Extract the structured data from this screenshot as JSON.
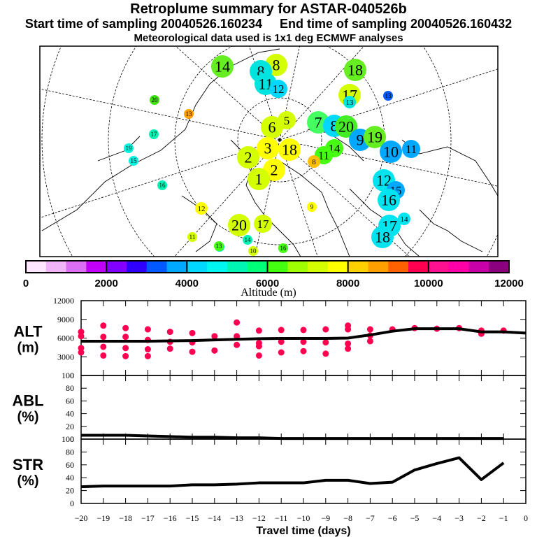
{
  "header": {
    "title": "Retroplume summary for ASTAR-040526b",
    "line2": "Start time of sampling 20040526.160234     End time of sampling 20040526.160432",
    "line3": "Meteorological data used is 1x1 deg ECMWF analyses"
  },
  "colorbar": {
    "label": "Altitude (m)",
    "ticks": [
      "0",
      "2000",
      "4000",
      "6000",
      "8000",
      "10000",
      "12000"
    ],
    "range": [
      0,
      12000
    ],
    "colors": [
      "#ffe6ff",
      "#f2b4f9",
      "#dc6ef4",
      "#c000f8",
      "#8200ff",
      "#3000ff",
      "#005aff",
      "#00a8ff",
      "#00d8ff",
      "#00f6f0",
      "#00f5b4",
      "#00ff78",
      "#44ff10",
      "#a0ff00",
      "#d4ff00",
      "#ffff00",
      "#ffd000",
      "#ffa000",
      "#ff6000",
      "#ff0050",
      "#ff1090",
      "#ff00a8",
      "#c800a8",
      "#8c0080"
    ]
  },
  "map": {
    "markers": [
      {
        "label": "14",
        "color": "#66ee22",
        "size": "l"
      },
      {
        "label": "8",
        "color": "#d4ff00",
        "size": "l"
      },
      {
        "label": "8",
        "color": "#00e4e0",
        "size": "l"
      },
      {
        "label": "11",
        "color": "#00e4e0",
        "size": "l"
      },
      {
        "label": "12",
        "color": "#00d8ff",
        "size": "m"
      },
      {
        "label": "18",
        "color": "#66ee22",
        "size": "l"
      },
      {
        "label": "17",
        "color": "#d4ff00",
        "size": "l"
      },
      {
        "label": "13",
        "color": "#00e4e0",
        "size": "s"
      },
      {
        "label": "20",
        "color": "#44dd11",
        "size": "xs"
      },
      {
        "label": "13",
        "color": "#ffa000",
        "size": "xs"
      },
      {
        "label": "17",
        "color": "#00f5b4",
        "size": "xs"
      },
      {
        "label": "19",
        "color": "#00f5e0",
        "size": "xs"
      },
      {
        "label": "15",
        "color": "#00f5e0",
        "size": "xs"
      },
      {
        "label": "16",
        "color": "#00f5b4",
        "size": "xs"
      },
      {
        "label": "6",
        "color": "#d4ff00",
        "size": "l"
      },
      {
        "label": "5",
        "color": "#d4ff00",
        "size": "m"
      },
      {
        "label": "7",
        "color": "#44ff60",
        "size": "l"
      },
      {
        "label": "8",
        "color": "#00d8ff",
        "size": "l"
      },
      {
        "label": "20",
        "color": "#44ee22",
        "size": "l"
      },
      {
        "label": "9",
        "color": "#00a8ff",
        "size": "l"
      },
      {
        "label": "19",
        "color": "#66ee22",
        "size": "l"
      },
      {
        "label": "10",
        "color": "#00a8ff",
        "size": "l"
      },
      {
        "label": "11",
        "color": "#00a8ff",
        "size": "m"
      },
      {
        "label": "14",
        "color": "#44ff10",
        "size": "m"
      },
      {
        "label": "11",
        "color": "#44ff10",
        "size": "m"
      },
      {
        "label": "8",
        "color": "#ffc000",
        "size": "s"
      },
      {
        "label": "18",
        "color": "#ffff00",
        "size": "l"
      },
      {
        "label": "3",
        "color": "#ffff00",
        "size": "l"
      },
      {
        "label": "2",
        "color": "#d4ff00",
        "size": "l"
      },
      {
        "label": "2",
        "color": "#ffff00",
        "size": "l"
      },
      {
        "label": "1",
        "color": "#d4ff00",
        "size": "l"
      },
      {
        "label": "12",
        "color": "#00e4f0",
        "size": "l"
      },
      {
        "label": "15",
        "color": "#00a8ff",
        "size": "m"
      },
      {
        "label": "16",
        "color": "#00e4f0",
        "size": "l"
      },
      {
        "label": "14",
        "color": "#00e4f0",
        "size": "s"
      },
      {
        "label": "17",
        "color": "#00e4f0",
        "size": "l"
      },
      {
        "label": "18",
        "color": "#00e4f0",
        "size": "l"
      },
      {
        "label": "9",
        "color": "#ffff00",
        "size": "xs"
      },
      {
        "label": "12",
        "color": "#ffff00",
        "size": "s"
      },
      {
        "label": "11",
        "color": "#d4ff00",
        "size": "xs"
      },
      {
        "label": "20",
        "color": "#d4ff00",
        "size": "l"
      },
      {
        "label": "17",
        "color": "#d4ff00",
        "size": "m"
      },
      {
        "label": "18",
        "color": "#00f5b4",
        "size": "xs"
      },
      {
        "label": "13",
        "color": "#44ff10",
        "size": "xs"
      },
      {
        "label": "14",
        "color": "#00f5b4",
        "size": "xs"
      },
      {
        "label": "16",
        "color": "#44ff10",
        "size": "xs"
      },
      {
        "label": "10",
        "color": "#d4ff00",
        "size": "xs"
      },
      {
        "label": "13",
        "color": "#005aff",
        "size": "xs"
      }
    ]
  },
  "chart_data": [
    {
      "type": "scatter",
      "panel": "ALT",
      "ylabel": "ALT\n(m)",
      "ylim": [
        0,
        12000
      ],
      "yticks": [
        "0",
        "3000",
        "6000",
        "9000",
        "12000"
      ],
      "xlim": [
        -20,
        0
      ],
      "line": {
        "x": [
          -20,
          -19,
          -18,
          -17,
          -16,
          -15,
          -14,
          -13,
          -12,
          -11,
          -10,
          -9,
          -8,
          -7,
          -6,
          -5,
          -4,
          -3,
          -2,
          -1,
          0
        ],
        "y": [
          5500,
          5500,
          5500,
          5500,
          5550,
          5600,
          5700,
          5800,
          5900,
          5950,
          5950,
          5950,
          6000,
          6500,
          7100,
          7500,
          7500,
          7500,
          7000,
          7000,
          6800
        ]
      },
      "points": [
        {
          "x": -20,
          "y": 7000
        },
        {
          "x": -20,
          "y": 6300
        },
        {
          "x": -20,
          "y": 4400
        },
        {
          "x": -20,
          "y": 3700
        },
        {
          "x": -19,
          "y": 8000
        },
        {
          "x": -19,
          "y": 6200
        },
        {
          "x": -19,
          "y": 4600
        },
        {
          "x": -19,
          "y": 3200
        },
        {
          "x": -18,
          "y": 7600
        },
        {
          "x": -18,
          "y": 6200
        },
        {
          "x": -18,
          "y": 4400
        },
        {
          "x": -18,
          "y": 3100
        },
        {
          "x": -17,
          "y": 7400
        },
        {
          "x": -17,
          "y": 5700
        },
        {
          "x": -17,
          "y": 4200
        },
        {
          "x": -17,
          "y": 3100
        },
        {
          "x": -16,
          "y": 7000
        },
        {
          "x": -16,
          "y": 5400
        },
        {
          "x": -16,
          "y": 4300
        },
        {
          "x": -15,
          "y": 6800
        },
        {
          "x": -15,
          "y": 5300
        },
        {
          "x": -15,
          "y": 3800
        },
        {
          "x": -14,
          "y": 6300
        },
        {
          "x": -14,
          "y": 4000
        },
        {
          "x": -13,
          "y": 8500
        },
        {
          "x": -13,
          "y": 6300
        },
        {
          "x": -13,
          "y": 4900
        },
        {
          "x": -12,
          "y": 7200
        },
        {
          "x": -12,
          "y": 5200
        },
        {
          "x": -12,
          "y": 4700
        },
        {
          "x": -12,
          "y": 3200
        },
        {
          "x": -11,
          "y": 7300
        },
        {
          "x": -11,
          "y": 5400
        },
        {
          "x": -11,
          "y": 3700
        },
        {
          "x": -10,
          "y": 7300
        },
        {
          "x": -10,
          "y": 5400
        },
        {
          "x": -10,
          "y": 3900
        },
        {
          "x": -9,
          "y": 7400
        },
        {
          "x": -9,
          "y": 5300
        },
        {
          "x": -9,
          "y": 3500
        },
        {
          "x": -8,
          "y": 8000
        },
        {
          "x": -8,
          "y": 7400
        },
        {
          "x": -8,
          "y": 5100
        },
        {
          "x": -8,
          "y": 4300
        },
        {
          "x": -7,
          "y": 7400
        },
        {
          "x": -7,
          "y": 6400
        },
        {
          "x": -7,
          "y": 5500
        },
        {
          "x": -6,
          "y": 7400
        },
        {
          "x": -5,
          "y": 7600
        },
        {
          "x": -4,
          "y": 7500
        },
        {
          "x": -3,
          "y": 7600
        },
        {
          "x": -2,
          "y": 7200
        },
        {
          "x": -2,
          "y": 6700
        },
        {
          "x": -1,
          "y": 7200
        }
      ]
    },
    {
      "type": "line",
      "panel": "ABL",
      "ylabel": "ABL\n(%)",
      "ylim": [
        0,
        100
      ],
      "yticks": [
        "0",
        "20",
        "40",
        "60",
        "80",
        "100"
      ],
      "xlim": [
        -20,
        0
      ],
      "x": [
        -20,
        -19,
        -18,
        -17,
        -16,
        -15,
        -14,
        -13,
        -12,
        -11,
        -10,
        -9,
        -8,
        -7,
        -6,
        -5,
        -4,
        -3,
        -2,
        -1
      ],
      "y": [
        6,
        6,
        6,
        5,
        4,
        3,
        3,
        2,
        2,
        1,
        1,
        1,
        1,
        1,
        1,
        1,
        1,
        1,
        1,
        1
      ]
    },
    {
      "type": "line",
      "panel": "STR",
      "ylabel": "STR\n(%)",
      "ylim": [
        0,
        100
      ],
      "yticks": [
        "0",
        "20",
        "40",
        "60",
        "80",
        "100"
      ],
      "xlim": [
        -20,
        0
      ],
      "x": [
        -20,
        -19,
        -18,
        -17,
        -16,
        -15,
        -14,
        -13,
        -12,
        -11,
        -10,
        -9,
        -8,
        -7,
        -6,
        -5,
        -4,
        -3,
        -2,
        -1
      ],
      "y": [
        26,
        27,
        27,
        27,
        27,
        29,
        29,
        30,
        32,
        32,
        32,
        36,
        36,
        31,
        33,
        52,
        62,
        71,
        37,
        63
      ],
      "xticks": [
        "-20",
        "-19",
        "-18",
        "-17",
        "-16",
        "-15",
        "-14",
        "-13",
        "-12",
        "-11",
        "-10",
        "-9",
        "-8",
        "-7",
        "-6",
        "-5",
        "-4",
        "-3",
        "-2",
        "-1",
        "0"
      ],
      "xlabel": "Travel time (days)"
    }
  ]
}
